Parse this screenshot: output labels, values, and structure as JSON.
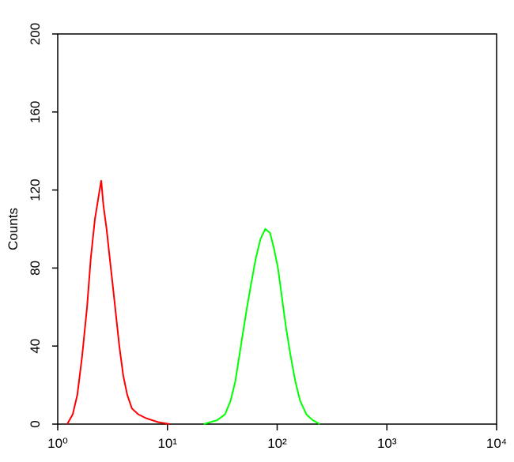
{
  "chart_data": {
    "type": "line",
    "y_label": "Counts",
    "log_x": true,
    "xlim": [
      1,
      10000
    ],
    "xticks": [
      {
        "value": 1,
        "label": "10⁰"
      },
      {
        "value": 10,
        "label": "10¹"
      },
      {
        "value": 100,
        "label": "10²"
      },
      {
        "value": 1000,
        "label": "10³"
      },
      {
        "value": 10000,
        "label": "10⁴"
      }
    ],
    "ylim": [
      0,
      200
    ],
    "yticks": [
      0,
      40,
      80,
      120,
      160,
      200
    ],
    "series": [
      {
        "color": "#ff0000",
        "x": [
          1.22,
          1.37,
          1.51,
          1.67,
          1.85,
          2.0,
          2.18,
          2.33,
          2.49,
          2.61,
          2.79,
          2.98,
          3.19,
          3.41,
          3.64,
          3.95,
          4.3,
          4.74,
          5.42,
          6.39,
          8.2,
          10.5
        ],
        "values": [
          0,
          5,
          15,
          35,
          60,
          85,
          105,
          115,
          125,
          112,
          100,
          85,
          70,
          55,
          40,
          25,
          15,
          8,
          5,
          3,
          1,
          0
        ]
      },
      {
        "color": "#00ff00",
        "x": [
          21.4,
          28.4,
          33.5,
          37.6,
          41.6,
          46.7,
          52.4,
          57.9,
          63.9,
          70.6,
          78.0,
          86.1,
          93.5,
          101.6,
          110.5,
          120,
          132.5,
          146.3,
          161.7,
          184.6,
          211,
          244.6
        ],
        "values": [
          0,
          2,
          5,
          12,
          22,
          40,
          58,
          72,
          85,
          95,
          100,
          98,
          90,
          80,
          65,
          50,
          35,
          22,
          12,
          5,
          2,
          0
        ]
      }
    ]
  }
}
